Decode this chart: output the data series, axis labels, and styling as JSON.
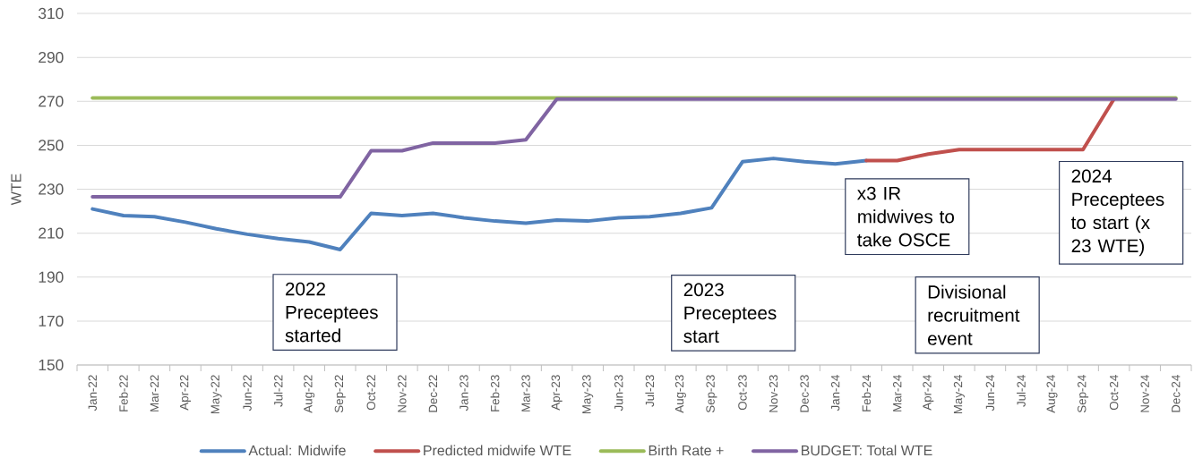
{
  "chart_data": {
    "type": "line",
    "ylabel": "WTE",
    "categories": [
      "Jan-22",
      "Feb-22",
      "Mar-22",
      "Apr-22",
      "May-22",
      "Jun-22",
      "Jul-22",
      "Aug-22",
      "Sep-22",
      "Oct-22",
      "Nov-22",
      "Dec-22",
      "Jan-23",
      "Feb-23",
      "Mar-23",
      "Apr-23",
      "May-23",
      "Jun-23",
      "Jul-23",
      "Aug-23",
      "Sep-23",
      "Oct-23",
      "Nov-23",
      "Dec-23",
      "Jan-24",
      "Feb-24",
      "Mar-24",
      "Apr-24",
      "May-24",
      "Jun-24",
      "Jul-24",
      "Aug-24",
      "Sep-24",
      "Oct-24",
      "Nov-24",
      "Dec-24"
    ],
    "series": [
      {
        "name": "Actual: Midwife",
        "color": "#4f81bd",
        "values": [
          221,
          218,
          217.5,
          215,
          212,
          209.5,
          207.5,
          206,
          202.5,
          219,
          218,
          219,
          217,
          215.5,
          214.5,
          216,
          215.5,
          217,
          217.5,
          219,
          221.5,
          242.5,
          244,
          242.5,
          241.5,
          243,
          null,
          null,
          null,
          null,
          null,
          null,
          null,
          null,
          null,
          null
        ]
      },
      {
        "name": "Predicted midwife WTE",
        "color": "#c0504d",
        "values": [
          null,
          null,
          null,
          null,
          null,
          null,
          null,
          null,
          null,
          null,
          null,
          null,
          null,
          null,
          null,
          null,
          null,
          null,
          null,
          null,
          null,
          null,
          null,
          null,
          null,
          243,
          243,
          246,
          248,
          248,
          248,
          248,
          248,
          271,
          null,
          null
        ]
      },
      {
        "name": "Birth Rate +",
        "color": "#9bbb59",
        "values": [
          271.5,
          271.5,
          271.5,
          271.5,
          271.5,
          271.5,
          271.5,
          271.5,
          271.5,
          271.5,
          271.5,
          271.5,
          271.5,
          271.5,
          271.5,
          271.5,
          271.5,
          271.5,
          271.5,
          271.5,
          271.5,
          271.5,
          271.5,
          271.5,
          271.5,
          271.5,
          271.5,
          271.5,
          271.5,
          271.5,
          271.5,
          271.5,
          271.5,
          271.5,
          271.5,
          271.5
        ]
      },
      {
        "name": "BUDGET: Total WTE",
        "color": "#8064a2",
        "values": [
          226.5,
          226.5,
          226.5,
          226.5,
          226.5,
          226.5,
          226.5,
          226.5,
          226.5,
          247.5,
          247.5,
          251,
          251,
          251,
          252.5,
          271,
          271,
          271,
          271,
          271,
          271,
          271,
          271,
          271,
          271,
          271,
          271,
          271,
          271,
          271,
          271,
          271,
          271,
          271,
          271,
          271
        ]
      }
    ],
    "ylim": [
      150,
      310
    ],
    "yticks": [
      150,
      170,
      190,
      210,
      230,
      250,
      270,
      290,
      310
    ],
    "grid": "y",
    "legend": "bottom",
    "line_style": "solid",
    "annotations": [
      "2022 Preceptees started",
      "2023 Preceptees start",
      "x3 IR midwives to take OSCE",
      "Divisional recruitment event",
      "2024 Preceptees to start (x 23 WTE)"
    ]
  }
}
